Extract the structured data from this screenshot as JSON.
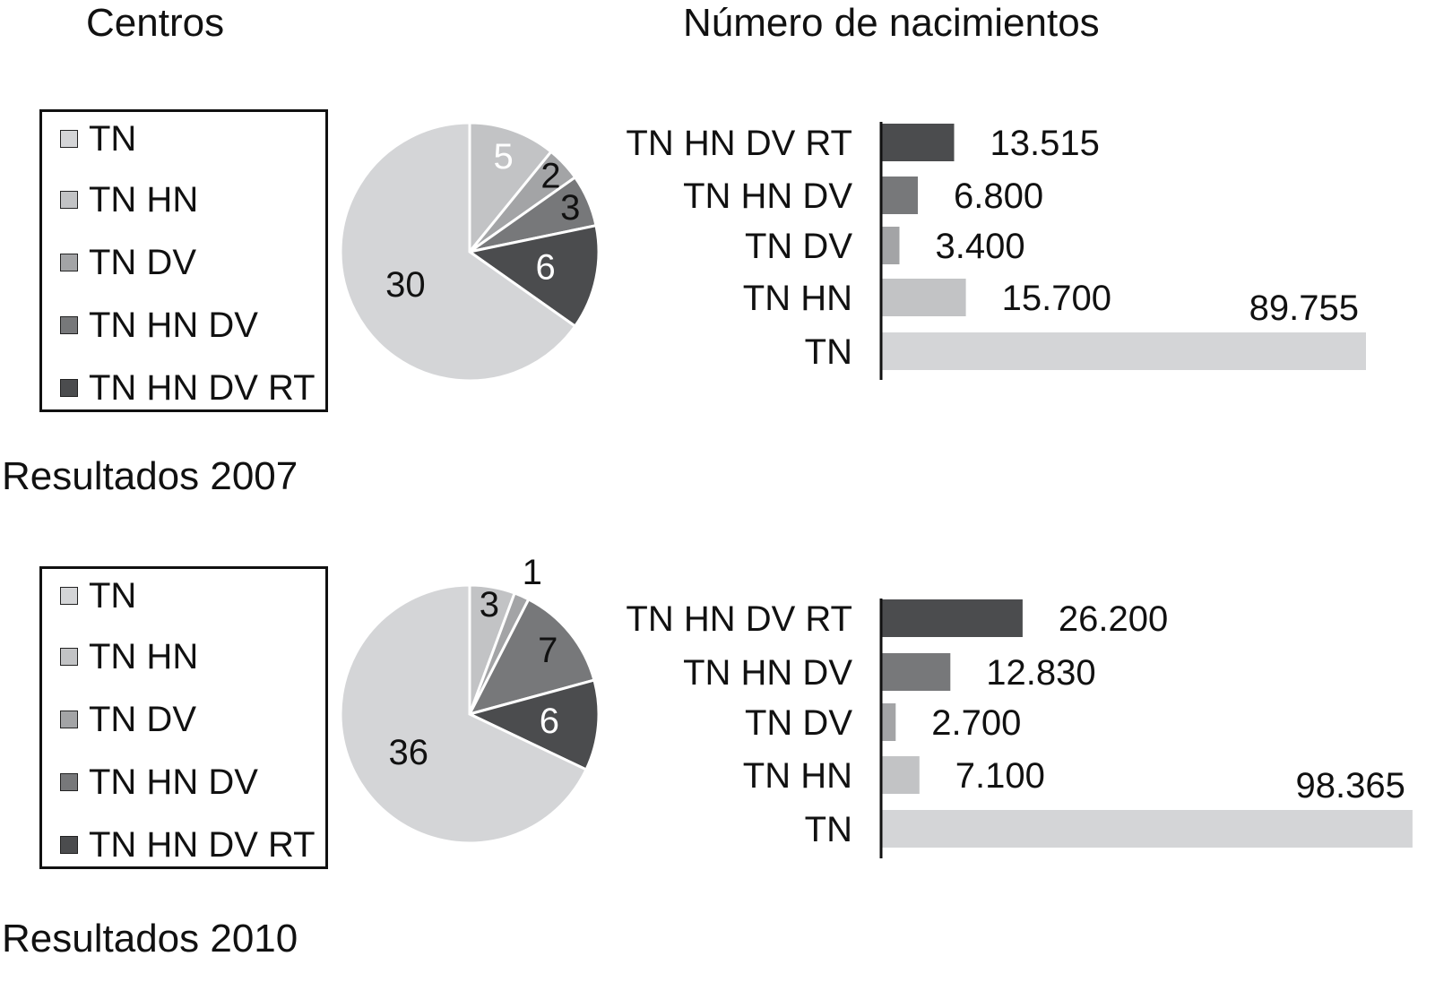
{
  "headings": {
    "left": "Centros",
    "right": "Número de nacimientos"
  },
  "colors": {
    "TN": "#d4d5d7",
    "TN HN": "#c2c3c5",
    "TN DV": "#a3a4a6",
    "TN HN DV": "#77787a",
    "TN HN DV RT": "#4b4c4e"
  },
  "chart_data": [
    {
      "section_title": "Resultados 2007",
      "legend": [
        "TN",
        "TN HN",
        "TN DV",
        "TN HN DV",
        "TN HN DV RT"
      ],
      "pie": {
        "type": "pie",
        "slices": [
          {
            "label": "TN HN",
            "value": 5
          },
          {
            "label": "TN DV",
            "value": 2
          },
          {
            "label": "TN HN DV",
            "value": 3
          },
          {
            "label": "TN HN DV RT",
            "value": 6
          },
          {
            "label": "TN",
            "value": 30
          }
        ]
      },
      "bars": {
        "type": "bar",
        "orientation": "horizontal",
        "categories": [
          "TN HN DV RT",
          "TN HN DV",
          "TN DV",
          "TN HN",
          "TN"
        ],
        "values": [
          13515,
          6800,
          3400,
          15700,
          89755
        ],
        "value_labels": [
          "13.515",
          "6.800",
          "3.400",
          "15.700",
          "89.755"
        ]
      }
    },
    {
      "section_title": "Resultados 2010",
      "legend": [
        "TN",
        "TN HN",
        "TN DV",
        "TN HN DV",
        "TN HN DV RT"
      ],
      "pie": {
        "type": "pie",
        "slices": [
          {
            "label": "TN HN",
            "value": 3
          },
          {
            "label": "TN DV",
            "value": 1
          },
          {
            "label": "TN HN DV",
            "value": 7
          },
          {
            "label": "TN HN DV RT",
            "value": 6
          },
          {
            "label": "TN",
            "value": 36
          }
        ]
      },
      "bars": {
        "type": "bar",
        "orientation": "horizontal",
        "categories": [
          "TN HN DV RT",
          "TN HN DV",
          "TN DV",
          "TN HN",
          "TN"
        ],
        "values": [
          26200,
          12830,
          2700,
          7100,
          98365
        ],
        "value_labels": [
          "26.200",
          "12.830",
          "2.700",
          "7.100",
          "98.365"
        ]
      }
    }
  ]
}
